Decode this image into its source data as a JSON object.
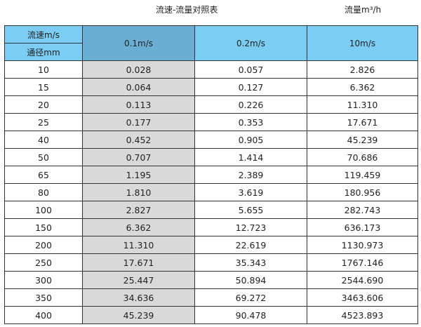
{
  "title": "流速-流量对照表",
  "unit": "流量m³/h",
  "header": {
    "velocity_label": "流速m/s",
    "diameter_label": "通径mm",
    "columns": [
      "0.1m/s",
      "0.2m/s",
      "10m/s"
    ]
  },
  "rows": [
    [
      "10",
      "0.028",
      "0.057",
      "2.826"
    ],
    [
      "15",
      "0.064",
      "0.127",
      "6.362"
    ],
    [
      "20",
      "0.113",
      "0.226",
      "11.310"
    ],
    [
      "25",
      "0.177",
      "0.353",
      "17.671"
    ],
    [
      "40",
      "0.452",
      "0.905",
      "45.239"
    ],
    [
      "50",
      "0.707",
      "1.414",
      "70.686"
    ],
    [
      "65",
      "1.195",
      "2.389",
      "119.459"
    ],
    [
      "80",
      "1.810",
      "3.619",
      "180.956"
    ],
    [
      "100",
      "2.827",
      "5.655",
      "282.743"
    ],
    [
      "150",
      "6.362",
      "12.723",
      "636.173"
    ],
    [
      "200",
      "11.310",
      "22.619",
      "1130.973"
    ],
    [
      "250",
      "17.671",
      "35.343",
      "1767.146"
    ],
    [
      "300",
      "25.447",
      "50.894",
      "2544.690"
    ],
    [
      "350",
      "34.636",
      "69.272",
      "3463.606"
    ],
    [
      "400",
      "45.239",
      "90.478",
      "4523.893"
    ]
  ]
}
